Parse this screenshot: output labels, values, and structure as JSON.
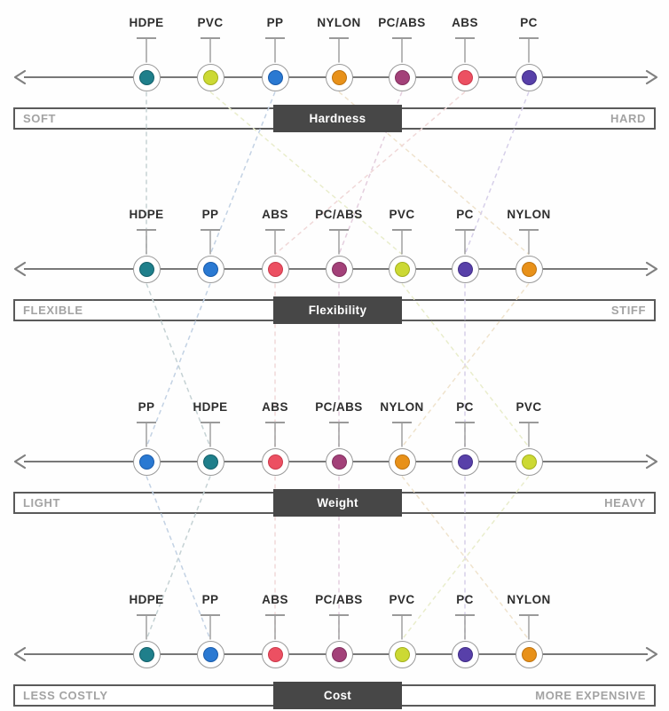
{
  "materials": {
    "HDPE": {
      "label": "HDPE",
      "color": "#1f7f8b",
      "edge_color": "#14606a",
      "line_color": "#c5d2d4"
    },
    "PVC": {
      "label": "PVC",
      "color": "#ccd934",
      "edge_color": "#a3b01f",
      "line_color": "#e9edcc"
    },
    "PP": {
      "label": "PP",
      "color": "#2a79d2",
      "edge_color": "#1b5cab",
      "line_color": "#c3d2e4"
    },
    "NYLON": {
      "label": "NYLON",
      "color": "#e89119",
      "edge_color": "#bf7410",
      "line_color": "#efe3cd"
    },
    "PC/ABS": {
      "label": "PC/ABS",
      "color": "#a34179",
      "edge_color": "#82315f",
      "line_color": "#e4cede"
    },
    "ABS": {
      "label": "ABS",
      "color": "#ec5062",
      "edge_color": "#cc3a4c",
      "line_color": "#f0d8d8"
    },
    "PC": {
      "label": "PC",
      "color": "#5840a9",
      "edge_color": "#412d87",
      "line_color": "#d6cfe9"
    }
  },
  "sections": [
    {
      "id": "hardness",
      "center_label": "Hardness",
      "left_label": "SOFT",
      "right_label": "HARD",
      "order": [
        "HDPE",
        "PVC",
        "PP",
        "NYLON",
        "PC/ABS",
        "ABS",
        "PC"
      ]
    },
    {
      "id": "flexibility",
      "center_label": "Flexibility",
      "left_label": "FLEXIBLE",
      "right_label": "STIFF",
      "order": [
        "HDPE",
        "PP",
        "ABS",
        "PC/ABS",
        "PVC",
        "PC",
        "NYLON"
      ]
    },
    {
      "id": "weight",
      "center_label": "Weight",
      "left_label": "LIGHT",
      "right_label": "HEAVY",
      "order": [
        "PP",
        "HDPE",
        "ABS",
        "PC/ABS",
        "NYLON",
        "PC",
        "PVC"
      ]
    },
    {
      "id": "cost",
      "center_label": "Cost",
      "left_label": "LESS COSTLY",
      "right_label": "MORE EXPENSIVE",
      "order": [
        "HDPE",
        "PP",
        "ABS",
        "PC/ABS",
        "PVC",
        "PC",
        "NYLON"
      ]
    }
  ]
}
